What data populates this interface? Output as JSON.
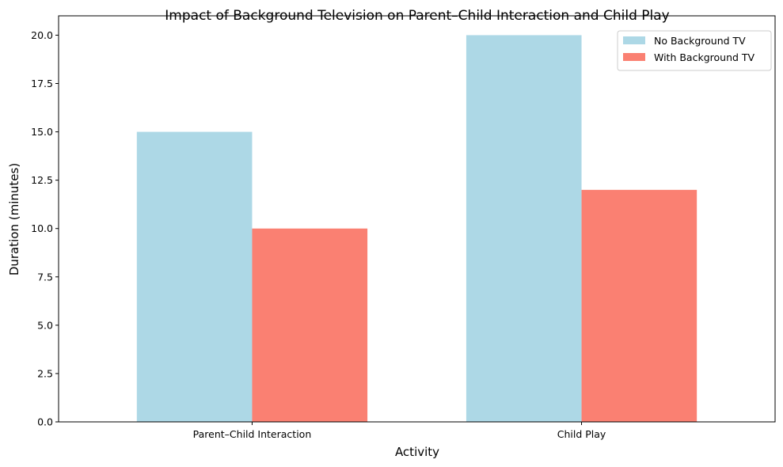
{
  "chart_data": {
    "type": "bar",
    "title": "Impact of Background Television on Parent–Child Interaction and Child Play",
    "xlabel": "Activity",
    "ylabel": "Duration (minutes)",
    "categories": [
      "Parent–Child Interaction",
      "Child Play"
    ],
    "series": [
      {
        "name": "No Background TV",
        "values": [
          15,
          20
        ],
        "color": "#add8e6"
      },
      {
        "name": "With Background TV",
        "values": [
          10,
          12
        ],
        "color": "#fa8072"
      }
    ],
    "ylim": [
      0,
      21
    ],
    "yticks": [
      0,
      2.5,
      5,
      7.5,
      10,
      12.5,
      15,
      17.5,
      20
    ],
    "ytick_labels": [
      "0.0",
      "2.5",
      "5.0",
      "7.5",
      "10.0",
      "12.5",
      "15.0",
      "17.5",
      "20.0"
    ],
    "grid": false,
    "legend_position": "top-right"
  }
}
